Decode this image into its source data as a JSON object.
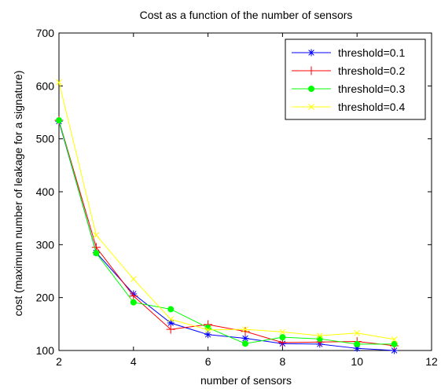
{
  "chart_data": {
    "type": "line",
    "title": "Cost as a function of the number of sensors",
    "xlabel": "number of sensors",
    "ylabel": "cost (maximum number of leakage for a signature)",
    "xlim": [
      2,
      12
    ],
    "ylim": [
      100,
      700
    ],
    "xticks": [
      2,
      4,
      6,
      8,
      10,
      12
    ],
    "yticks": [
      100,
      200,
      300,
      400,
      500,
      600,
      700
    ],
    "grid": false,
    "legend_position": "top-right",
    "x": [
      2,
      3,
      4,
      5,
      6,
      7,
      8,
      9,
      10,
      11
    ],
    "series": [
      {
        "name": "threshold=0.1",
        "color": "#0000ff",
        "marker": "asterisk",
        "values": [
          533,
          285,
          207,
          152,
          130,
          123,
          113,
          112,
          104,
          100
        ]
      },
      {
        "name": "threshold=0.2",
        "color": "#ff0000",
        "marker": "plus",
        "values": [
          535,
          295,
          203,
          140,
          149,
          136,
          115,
          116,
          117,
          109
        ]
      },
      {
        "name": "threshold=0.3",
        "color": "#00ff00",
        "marker": "dot",
        "values": [
          535,
          284,
          191,
          178,
          143,
          113,
          125,
          122,
          112,
          112
        ]
      },
      {
        "name": "threshold=0.4",
        "color": "#ffff00",
        "marker": "x",
        "values": [
          607,
          318,
          235,
          159,
          139,
          140,
          135,
          128,
          133,
          121
        ]
      }
    ]
  }
}
